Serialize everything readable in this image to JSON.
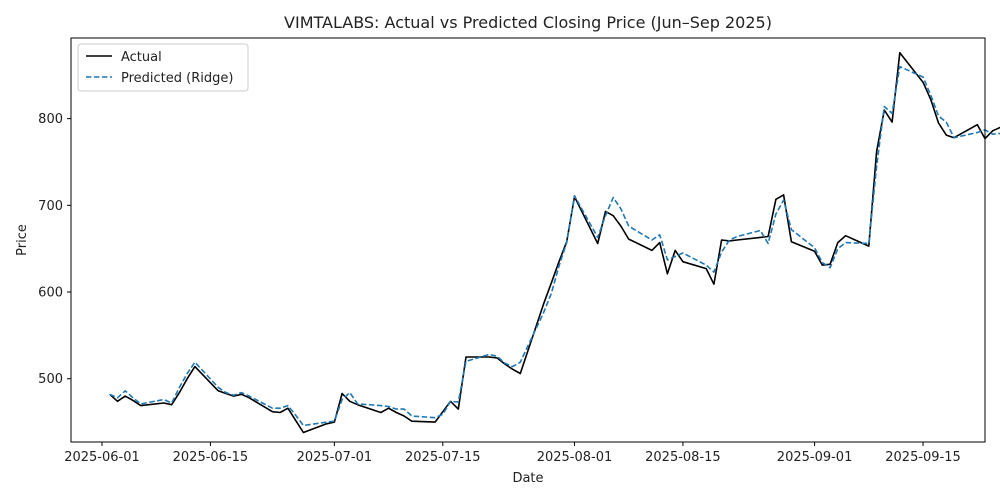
{
  "chart_data": {
    "type": "line",
    "title": "VIMTALABS: Actual vs Predicted Closing Price (Jun–Sep 2025)",
    "xlabel": "Date",
    "ylabel": "Price",
    "xlim": [
      "2025-05-28",
      "2025-09-23"
    ],
    "ylim": [
      427,
      893
    ],
    "x_ticks": [
      "2025-06-01",
      "2025-06-15",
      "2025-07-01",
      "2025-07-15",
      "2025-08-01",
      "2025-08-15",
      "2025-09-01",
      "2025-09-15"
    ],
    "y_ticks": [
      500,
      600,
      700,
      800
    ],
    "legend_position": "top-left",
    "grid": false,
    "series": [
      {
        "name": "Actual",
        "color": "#000000",
        "style": "solid",
        "points": [
          [
            "2025-06-02",
            482
          ],
          [
            "2025-06-03",
            474
          ],
          [
            "2025-06-04",
            480
          ],
          [
            "2025-06-05",
            475
          ],
          [
            "2025-06-06",
            469
          ],
          [
            "2025-06-09",
            472
          ],
          [
            "2025-06-10",
            470
          ],
          [
            "2025-06-11",
            484
          ],
          [
            "2025-06-12",
            500
          ],
          [
            "2025-06-13",
            514
          ],
          [
            "2025-06-16",
            486
          ],
          [
            "2025-06-17",
            483
          ],
          [
            "2025-06-18",
            480
          ],
          [
            "2025-06-19",
            482
          ],
          [
            "2025-06-20",
            478
          ],
          [
            "2025-06-23",
            462
          ],
          [
            "2025-06-24",
            461
          ],
          [
            "2025-06-25",
            466
          ],
          [
            "2025-06-26",
            452
          ],
          [
            "2025-06-27",
            438
          ],
          [
            "2025-06-30",
            448
          ],
          [
            "2025-07-01",
            450
          ],
          [
            "2025-07-02",
            483
          ],
          [
            "2025-07-03",
            474
          ],
          [
            "2025-07-04",
            470
          ],
          [
            "2025-07-07",
            461
          ],
          [
            "2025-07-08",
            466
          ],
          [
            "2025-07-09",
            461
          ],
          [
            "2025-07-10",
            457
          ],
          [
            "2025-07-11",
            451
          ],
          [
            "2025-07-14",
            450
          ],
          [
            "2025-07-15",
            462
          ],
          [
            "2025-07-16",
            474
          ],
          [
            "2025-07-17",
            465
          ],
          [
            "2025-07-18",
            525
          ],
          [
            "2025-07-21",
            525
          ],
          [
            "2025-07-22",
            524
          ],
          [
            "2025-07-23",
            517
          ],
          [
            "2025-07-24",
            511
          ],
          [
            "2025-07-25",
            506
          ],
          [
            "2025-07-28",
            586
          ],
          [
            "2025-07-29",
            610
          ],
          [
            "2025-07-30",
            635
          ],
          [
            "2025-07-31",
            658
          ],
          [
            "2025-08-01",
            710
          ],
          [
            "2025-08-04",
            656
          ],
          [
            "2025-08-05",
            693
          ],
          [
            "2025-08-06",
            688
          ],
          [
            "2025-08-07",
            676
          ],
          [
            "2025-08-08",
            661
          ],
          [
            "2025-08-11",
            648
          ],
          [
            "2025-08-12",
            657
          ],
          [
            "2025-08-13",
            621
          ],
          [
            "2025-08-14",
            648
          ],
          [
            "2025-08-15",
            635
          ],
          [
            "2025-08-18",
            627
          ],
          [
            "2025-08-19",
            609
          ],
          [
            "2025-08-20",
            660
          ],
          [
            "2025-08-21",
            659
          ],
          [
            "2025-08-22",
            660
          ],
          [
            "2025-08-25",
            663
          ],
          [
            "2025-08-26",
            664
          ],
          [
            "2025-08-27",
            707
          ],
          [
            "2025-08-28",
            712
          ],
          [
            "2025-08-29",
            658
          ],
          [
            "2025-09-01",
            647
          ],
          [
            "2025-09-02",
            631
          ],
          [
            "2025-09-03",
            632
          ],
          [
            "2025-09-04",
            657
          ],
          [
            "2025-09-05",
            665
          ],
          [
            "2025-09-08",
            653
          ],
          [
            "2025-09-09",
            762
          ],
          [
            "2025-09-10",
            810
          ],
          [
            "2025-09-11",
            796
          ],
          [
            "2025-09-12",
            876
          ],
          [
            "2025-09-15",
            842
          ],
          [
            "2025-09-16",
            822
          ],
          [
            "2025-09-17",
            795
          ],
          [
            "2025-09-18",
            781
          ],
          [
            "2025-09-19",
            778
          ],
          [
            "2025-09-22",
            793
          ],
          [
            "2025-09-23",
            777
          ],
          [
            "2025-09-24",
            786
          ],
          [
            "2025-09-25",
            790
          ]
        ]
      },
      {
        "name": "Predicted (Ridge)",
        "color": "#1f77b4",
        "style": "dashed",
        "points": [
          [
            "2025-06-02",
            482
          ],
          [
            "2025-06-03",
            478
          ],
          [
            "2025-06-04",
            486
          ],
          [
            "2025-06-05",
            478
          ],
          [
            "2025-06-06",
            471
          ],
          [
            "2025-06-09",
            476
          ],
          [
            "2025-06-10",
            472
          ],
          [
            "2025-06-11",
            490
          ],
          [
            "2025-06-12",
            506
          ],
          [
            "2025-06-13",
            519
          ],
          [
            "2025-06-16",
            490
          ],
          [
            "2025-06-17",
            484
          ],
          [
            "2025-06-18",
            481
          ],
          [
            "2025-06-19",
            484
          ],
          [
            "2025-06-20",
            480
          ],
          [
            "2025-06-23",
            466
          ],
          [
            "2025-06-24",
            466
          ],
          [
            "2025-06-25",
            469
          ],
          [
            "2025-06-26",
            458
          ],
          [
            "2025-06-27",
            446
          ],
          [
            "2025-06-30",
            450
          ],
          [
            "2025-07-01",
            451
          ],
          [
            "2025-07-02",
            476
          ],
          [
            "2025-07-03",
            484
          ],
          [
            "2025-07-04",
            471
          ],
          [
            "2025-07-07",
            469
          ],
          [
            "2025-07-08",
            468
          ],
          [
            "2025-07-09",
            465
          ],
          [
            "2025-07-10",
            465
          ],
          [
            "2025-07-11",
            457
          ],
          [
            "2025-07-14",
            455
          ],
          [
            "2025-07-15",
            459
          ],
          [
            "2025-07-16",
            474
          ],
          [
            "2025-07-17",
            473
          ],
          [
            "2025-07-18",
            520
          ],
          [
            "2025-07-21",
            528
          ],
          [
            "2025-07-22",
            526
          ],
          [
            "2025-07-23",
            518
          ],
          [
            "2025-07-24",
            514
          ],
          [
            "2025-07-25",
            519
          ],
          [
            "2025-07-28",
            576
          ],
          [
            "2025-07-29",
            598
          ],
          [
            "2025-07-30",
            630
          ],
          [
            "2025-07-31",
            657
          ],
          [
            "2025-08-01",
            711
          ],
          [
            "2025-08-04",
            663
          ],
          [
            "2025-08-05",
            688
          ],
          [
            "2025-08-06",
            709
          ],
          [
            "2025-08-07",
            696
          ],
          [
            "2025-08-08",
            676
          ],
          [
            "2025-08-11",
            660
          ],
          [
            "2025-08-12",
            666
          ],
          [
            "2025-08-13",
            637
          ],
          [
            "2025-08-14",
            641
          ],
          [
            "2025-08-15",
            645
          ],
          [
            "2025-08-18",
            631
          ],
          [
            "2025-08-19",
            623
          ],
          [
            "2025-08-20",
            646
          ],
          [
            "2025-08-21",
            660
          ],
          [
            "2025-08-22",
            664
          ],
          [
            "2025-08-25",
            671
          ],
          [
            "2025-08-26",
            656
          ],
          [
            "2025-08-27",
            690
          ],
          [
            "2025-08-28",
            706
          ],
          [
            "2025-08-29",
            672
          ],
          [
            "2025-09-01",
            651
          ],
          [
            "2025-09-02",
            634
          ],
          [
            "2025-09-03",
            628
          ],
          [
            "2025-09-04",
            650
          ],
          [
            "2025-09-05",
            657
          ],
          [
            "2025-09-08",
            656
          ],
          [
            "2025-09-09",
            745
          ],
          [
            "2025-09-10",
            814
          ],
          [
            "2025-09-11",
            806
          ],
          [
            "2025-09-12",
            860
          ],
          [
            "2025-09-15",
            848
          ],
          [
            "2025-09-16",
            827
          ],
          [
            "2025-09-17",
            803
          ],
          [
            "2025-09-18",
            796
          ],
          [
            "2025-09-19",
            778
          ],
          [
            "2025-09-22",
            784
          ],
          [
            "2025-09-23",
            787
          ],
          [
            "2025-09-24",
            782
          ],
          [
            "2025-09-25",
            783
          ]
        ]
      }
    ]
  }
}
